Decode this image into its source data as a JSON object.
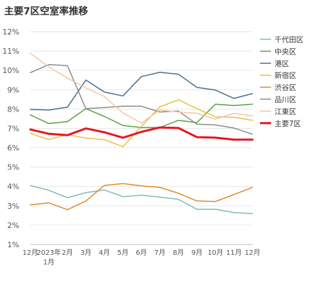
{
  "chart_data": {
    "type": "line",
    "title": "主要7区空室率推移",
    "categories": [
      "12月",
      "2023年1月",
      "2月",
      "3月",
      "4月",
      "5月",
      "6月",
      "7月",
      "8月",
      "9月",
      "10月",
      "11月",
      "12月"
    ],
    "y_ticks": [
      "1%",
      "2%",
      "3%",
      "4%",
      "5%",
      "6%",
      "7%",
      "8%",
      "9%",
      "10%",
      "11%",
      "12%"
    ],
    "ylim": [
      1,
      12
    ],
    "legend_position": "right",
    "grid": true,
    "series": [
      {
        "name": "千代田区",
        "color": "#7fb8b5",
        "width": 1.5,
        "values": [
          4.05,
          3.8,
          3.42,
          3.68,
          3.82,
          3.47,
          3.55,
          3.45,
          3.33,
          2.82,
          2.82,
          2.65,
          2.6
        ]
      },
      {
        "name": "中央区",
        "color": "#5a9e41",
        "width": 1.5,
        "values": [
          7.7,
          7.25,
          7.35,
          8.02,
          7.62,
          7.15,
          7.05,
          7.05,
          7.42,
          7.3,
          8.25,
          8.18,
          8.25
        ]
      },
      {
        "name": "港区",
        "color": "#456e8e",
        "width": 1.5,
        "values": [
          7.98,
          7.95,
          8.1,
          9.5,
          8.88,
          8.68,
          9.68,
          9.9,
          9.8,
          9.12,
          8.98,
          8.55,
          8.8
        ]
      },
      {
        "name": "新宿区",
        "color": "#e5c13f",
        "width": 1.5,
        "values": [
          6.75,
          6.42,
          6.68,
          6.5,
          6.42,
          6.05,
          7.1,
          8.12,
          8.48,
          8.02,
          7.6,
          7.58,
          7.42
        ]
      },
      {
        "name": "渋谷区",
        "color": "#e0892a",
        "width": 1.5,
        "values": [
          3.05,
          3.15,
          2.8,
          3.25,
          4.05,
          4.15,
          4.03,
          3.95,
          3.65,
          3.25,
          3.22,
          3.58,
          3.95
        ]
      },
      {
        "name": "品川区",
        "color": "#8a8a8a",
        "width": 1.5,
        "values": [
          9.88,
          10.3,
          10.25,
          8.02,
          8.08,
          8.15,
          8.15,
          7.85,
          7.9,
          7.22,
          7.18,
          7.02,
          6.7
        ]
      },
      {
        "name": "江東区",
        "color": "#f2c6a2",
        "width": 1.5,
        "values": [
          10.88,
          10.18,
          9.6,
          9.1,
          8.65,
          7.8,
          7.28,
          7.95,
          7.85,
          7.78,
          7.48,
          7.78,
          7.65
        ]
      },
      {
        "name": "主要7区",
        "color": "#e8141e",
        "width": 3,
        "values": [
          6.95,
          6.72,
          6.65,
          7.0,
          6.8,
          6.52,
          6.82,
          7.05,
          7.02,
          6.55,
          6.52,
          6.42,
          6.42
        ]
      }
    ]
  }
}
